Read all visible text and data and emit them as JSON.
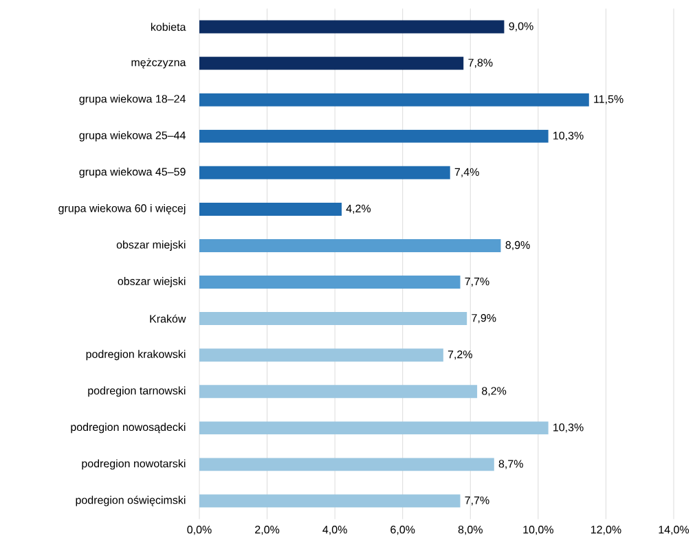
{
  "chart_data": {
    "type": "bar",
    "orientation": "horizontal",
    "categories": [
      "kobieta",
      "mężczyzna",
      "grupa wiekowa 18–24",
      "grupa wiekowa 25–44",
      "grupa wiekowa 45–59",
      "grupa wiekowa 60 i więcej",
      "obszar miejski",
      "obszar wiejski",
      "Kraków",
      "podregion krakowski",
      "podregion tarnowski",
      "podregion nowosądecki",
      "podregion nowotarski",
      "podregion oświęcimski"
    ],
    "values": [
      9.0,
      7.8,
      11.5,
      10.3,
      7.4,
      4.2,
      8.9,
      7.7,
      7.9,
      7.2,
      8.2,
      10.3,
      8.7,
      7.7
    ],
    "value_labels": [
      "9,0%",
      "7,8%",
      "11,5%",
      "10,3%",
      "7,4%",
      "4,2%",
      "8,9%",
      "7,7%",
      "7,9%",
      "7,2%",
      "8,2%",
      "10,3%",
      "8,7%",
      "7,7%"
    ],
    "colors": [
      "#0d2d63",
      "#0d2d63",
      "#1f6cb0",
      "#1f6cb0",
      "#1f6cb0",
      "#1f6cb0",
      "#559dd1",
      "#559dd1",
      "#9ac6e0",
      "#9ac6e0",
      "#9ac6e0",
      "#9ac6e0",
      "#9ac6e0",
      "#9ac6e0"
    ],
    "xlim": [
      0,
      14
    ],
    "xticks": [
      {
        "value": 0,
        "label": "0,0%"
      },
      {
        "value": 2,
        "label": "2,0%"
      },
      {
        "value": 4,
        "label": "4,0%"
      },
      {
        "value": 6,
        "label": "6,0%"
      },
      {
        "value": 8,
        "label": "8,0%"
      },
      {
        "value": 10,
        "label": "10,0%"
      },
      {
        "value": 12,
        "label": "12,0%"
      },
      {
        "value": 14,
        "label": "14,0%"
      }
    ],
    "grid": "x"
  }
}
